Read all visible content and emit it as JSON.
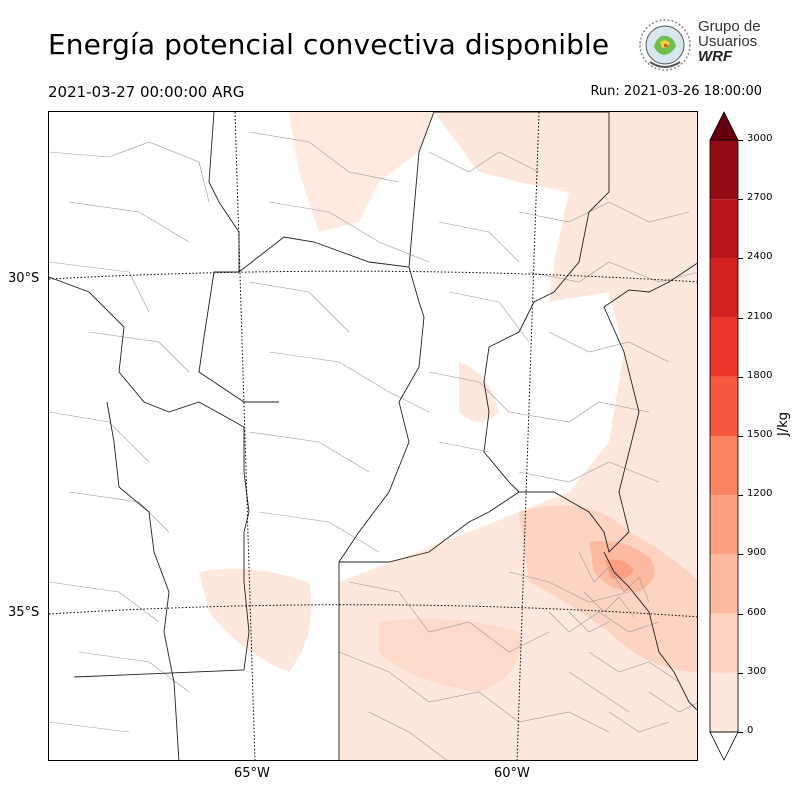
{
  "header": {
    "title": "Energía potencial convectiva disponible",
    "valid_time": "2021-03-27 00:00:00 ARG",
    "run_time": "Run: 2021-03-26 18:00:00"
  },
  "logo": {
    "line1": "Grupo de",
    "line2": "Usuarios",
    "line3": "WRF"
  },
  "axes": {
    "lat_labels": [
      "30°S",
      "35°S"
    ],
    "lon_labels": [
      "65°W",
      "60°W"
    ]
  },
  "colorbar": {
    "unit": "J/kg",
    "ticks": [
      "0",
      "300",
      "600",
      "900",
      "1200",
      "1500",
      "1800",
      "2100",
      "2400",
      "2700",
      "3000"
    ],
    "colors": [
      "#fee8dd",
      "#fdd4c2",
      "#fcbba1",
      "#fc9f81",
      "#fb8464",
      "#f6583e",
      "#eb372a",
      "#d52221",
      "#b81419",
      "#950b13",
      "#67000d"
    ]
  }
}
